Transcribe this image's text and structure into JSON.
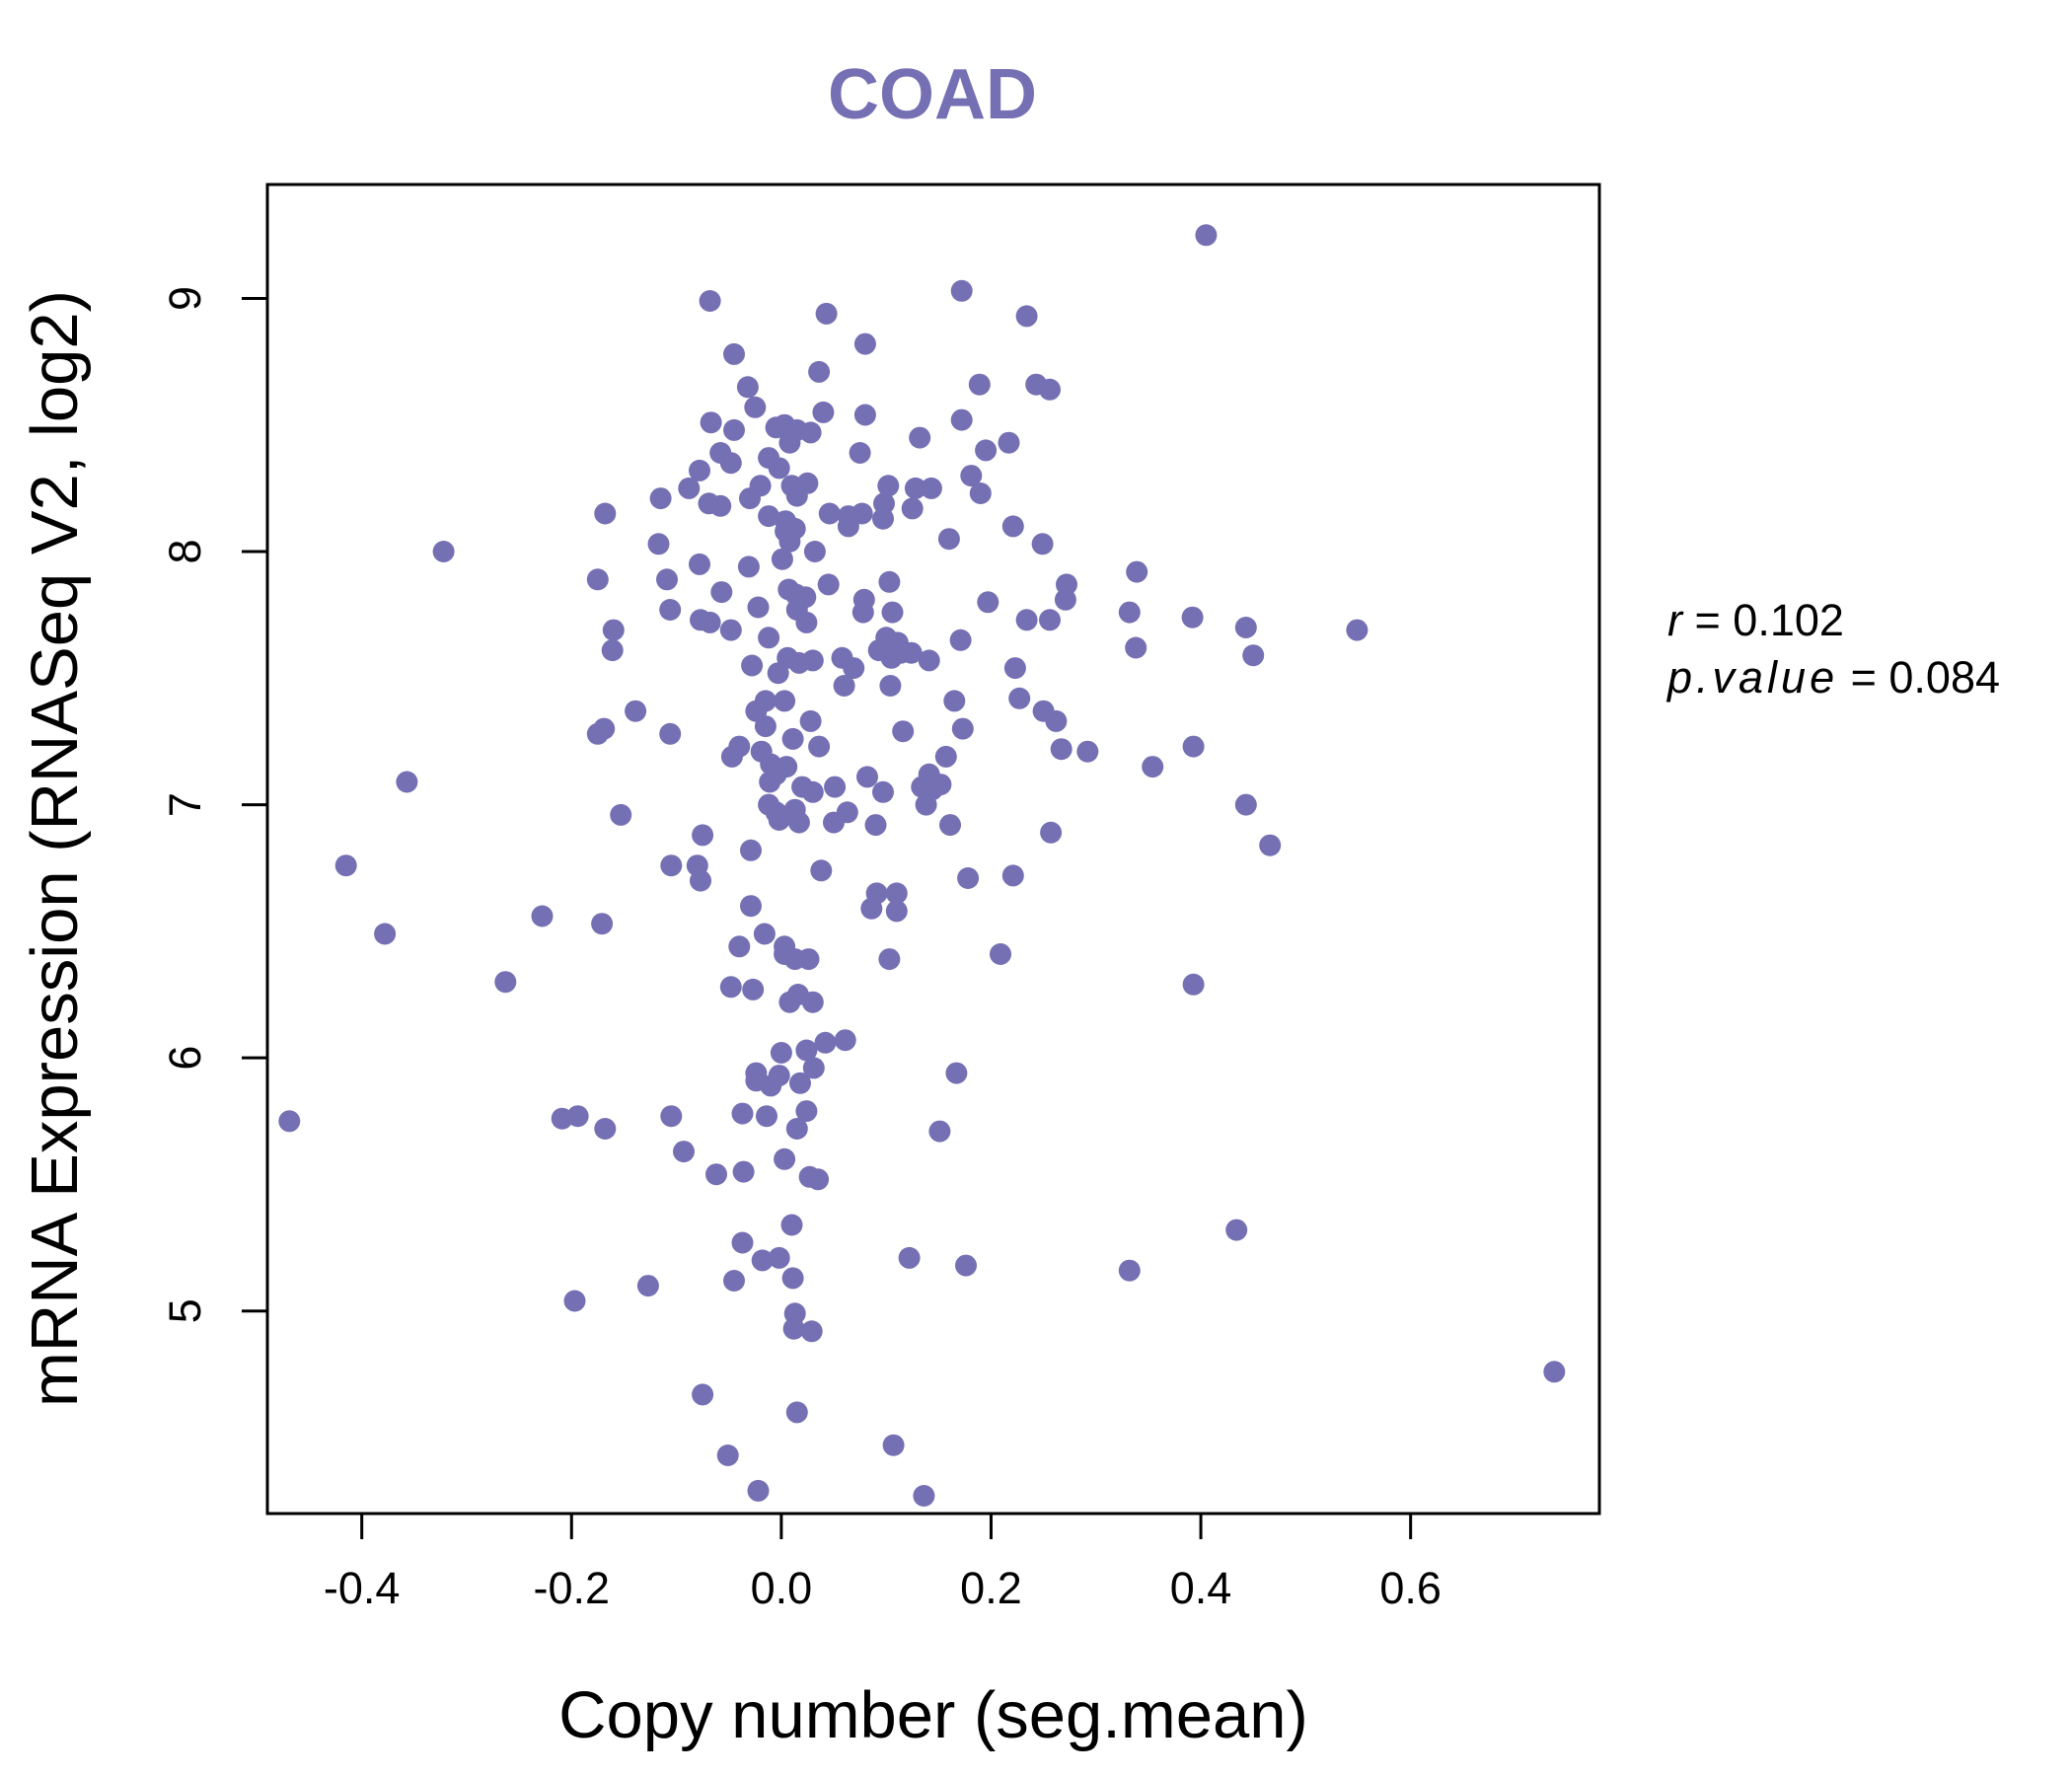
{
  "chart_data": {
    "type": "scatter",
    "title": "COAD",
    "xlabel": "Copy number (seg.mean)",
    "ylabel": "mRNA Expression (RNASeq V2, log2)",
    "xlim": [
      -0.49,
      0.78
    ],
    "ylim": [
      4.2,
      9.45
    ],
    "x_ticks": [
      -0.4,
      -0.2,
      0.0,
      0.2,
      0.4,
      0.6
    ],
    "x_tick_labels": [
      "-0.4",
      "-0.2",
      "0.0",
      "0.2",
      "0.4",
      "0.6"
    ],
    "y_ticks": [
      5,
      6,
      7,
      8,
      9
    ],
    "y_tick_labels": [
      "5",
      "6",
      "7",
      "8",
      "9"
    ],
    "grid": false,
    "point_color": "#7570b3",
    "annotation": {
      "r_label": "r",
      "r_value": "0.102",
      "p_label": "p.value",
      "p_value": "0.084"
    },
    "points": [
      [
        0.405,
        9.25
      ],
      [
        -0.068,
        8.99
      ],
      [
        0.172,
        9.03
      ],
      [
        0.043,
        8.94
      ],
      [
        0.234,
        8.93
      ],
      [
        -0.045,
        8.78
      ],
      [
        0.08,
        8.82
      ],
      [
        0.036,
        8.71
      ],
      [
        0.189,
        8.66
      ],
      [
        0.243,
        8.66
      ],
      [
        0.256,
        8.64
      ],
      [
        -0.032,
        8.65
      ],
      [
        -0.025,
        8.57
      ],
      [
        0.04,
        8.55
      ],
      [
        0.08,
        8.54
      ],
      [
        -0.067,
        8.51
      ],
      [
        -0.045,
        8.48
      ],
      [
        -0.005,
        8.49
      ],
      [
        0.003,
        8.5
      ],
      [
        0.015,
        8.48
      ],
      [
        0.028,
        8.47
      ],
      [
        0.172,
        8.52
      ],
      [
        0.132,
        8.45
      ],
      [
        0.217,
        8.43
      ],
      [
        0.195,
        8.4
      ],
      [
        0.008,
        8.43
      ],
      [
        -0.058,
        8.39
      ],
      [
        -0.048,
        8.35
      ],
      [
        -0.012,
        8.37
      ],
      [
        0.075,
        8.39
      ],
      [
        -0.078,
        8.32
      ],
      [
        -0.002,
        8.33
      ],
      [
        0.01,
        8.26
      ],
      [
        -0.02,
        8.26
      ],
      [
        -0.03,
        8.21
      ],
      [
        -0.088,
        8.25
      ],
      [
        -0.115,
        8.21
      ],
      [
        0.015,
        8.22
      ],
      [
        0.025,
        8.27
      ],
      [
        0.102,
        8.26
      ],
      [
        0.128,
        8.25
      ],
      [
        0.143,
        8.25
      ],
      [
        0.181,
        8.3
      ],
      [
        0.19,
        8.23
      ],
      [
        -0.069,
        8.19
      ],
      [
        -0.058,
        8.18
      ],
      [
        -0.168,
        8.15
      ],
      [
        -0.012,
        8.14
      ],
      [
        0.004,
        8.12
      ],
      [
        0.046,
        8.15
      ],
      [
        0.064,
        8.14
      ],
      [
        0.064,
        8.1
      ],
      [
        0.077,
        8.15
      ],
      [
        0.098,
        8.19
      ],
      [
        0.097,
        8.13
      ],
      [
        0.125,
        8.17
      ],
      [
        0.221,
        8.1
      ],
      [
        0.013,
        8.09
      ],
      [
        0.004,
        8.08
      ],
      [
        0.008,
        8.04
      ],
      [
        -0.117,
        8.03
      ],
      [
        0.16,
        8.05
      ],
      [
        0.249,
        8.03
      ],
      [
        -0.322,
        8.0
      ],
      [
        0.032,
        8.0
      ],
      [
        0.001,
        7.97
      ],
      [
        -0.078,
        7.95
      ],
      [
        -0.031,
        7.94
      ],
      [
        0.339,
        7.92
      ],
      [
        -0.175,
        7.89
      ],
      [
        -0.109,
        7.89
      ],
      [
        0.045,
        7.87
      ],
      [
        0.103,
        7.88
      ],
      [
        0.272,
        7.87
      ],
      [
        -0.057,
        7.84
      ],
      [
        0.007,
        7.85
      ],
      [
        0.014,
        7.83
      ],
      [
        0.023,
        7.82
      ],
      [
        0.079,
        7.81
      ],
      [
        0.271,
        7.81
      ],
      [
        0.197,
        7.8
      ],
      [
        -0.022,
        7.78
      ],
      [
        0.015,
        7.77
      ],
      [
        -0.106,
        7.77
      ],
      [
        0.078,
        7.76
      ],
      [
        0.106,
        7.76
      ],
      [
        0.332,
        7.76
      ],
      [
        -0.077,
        7.73
      ],
      [
        -0.068,
        7.72
      ],
      [
        0.024,
        7.72
      ],
      [
        0.234,
        7.73
      ],
      [
        0.256,
        7.73
      ],
      [
        0.392,
        7.74
      ],
      [
        -0.048,
        7.69
      ],
      [
        -0.16,
        7.69
      ],
      [
        0.443,
        7.7
      ],
      [
        0.549,
        7.69
      ],
      [
        -0.012,
        7.66
      ],
      [
        0.1,
        7.66
      ],
      [
        0.111,
        7.64
      ],
      [
        0.171,
        7.65
      ],
      [
        -0.161,
        7.61
      ],
      [
        0.093,
        7.61
      ],
      [
        0.338,
        7.62
      ],
      [
        0.105,
        7.58
      ],
      [
        0.058,
        7.58
      ],
      [
        0.006,
        7.58
      ],
      [
        0.114,
        7.6
      ],
      [
        0.124,
        7.6
      ],
      [
        0.03,
        7.57
      ],
      [
        0.017,
        7.56
      ],
      [
        0.141,
        7.57
      ],
      [
        0.45,
        7.59
      ],
      [
        -0.028,
        7.55
      ],
      [
        0.069,
        7.54
      ],
      [
        0.223,
        7.54
      ],
      [
        -0.003,
        7.52
      ],
      [
        0.104,
        7.47
      ],
      [
        0.06,
        7.47
      ],
      [
        0.165,
        7.41
      ],
      [
        0.227,
        7.42
      ],
      [
        -0.015,
        7.41
      ],
      [
        0.003,
        7.41
      ],
      [
        -0.024,
        7.37
      ],
      [
        -0.139,
        7.37
      ],
      [
        0.25,
        7.37
      ],
      [
        0.262,
        7.33
      ],
      [
        0.028,
        7.33
      ],
      [
        -0.015,
        7.31
      ],
      [
        0.173,
        7.3
      ],
      [
        -0.169,
        7.3
      ],
      [
        -0.106,
        7.28
      ],
      [
        -0.175,
        7.28
      ],
      [
        0.116,
        7.29
      ],
      [
        0.011,
        7.26
      ],
      [
        0.036,
        7.23
      ],
      [
        -0.04,
        7.23
      ],
      [
        -0.019,
        7.21
      ],
      [
        0.393,
        7.23
      ],
      [
        0.267,
        7.22
      ],
      [
        0.292,
        7.21
      ],
      [
        -0.047,
        7.19
      ],
      [
        0.157,
        7.19
      ],
      [
        -0.01,
        7.16
      ],
      [
        0.005,
        7.15
      ],
      [
        -0.005,
        7.12
      ],
      [
        0.141,
        7.12
      ],
      [
        0.354,
        7.15
      ],
      [
        0.082,
        7.11
      ],
      [
        -0.011,
        7.09
      ],
      [
        0.152,
        7.08
      ],
      [
        0.134,
        7.07
      ],
      [
        0.144,
        7.06
      ],
      [
        0.051,
        7.07
      ],
      [
        0.02,
        7.07
      ],
      [
        0.03,
        7.05
      ],
      [
        0.097,
        7.05
      ],
      [
        -0.357,
        7.09
      ],
      [
        -0.012,
        7.0
      ],
      [
        0.138,
        7.0
      ],
      [
        0.013,
        6.98
      ],
      [
        -0.005,
        6.97
      ],
      [
        0.063,
        6.97
      ],
      [
        0.443,
        7.0
      ],
      [
        -0.153,
        6.96
      ],
      [
        -0.002,
        6.94
      ],
      [
        0.017,
        6.93
      ],
      [
        0.05,
        6.93
      ],
      [
        0.09,
        6.92
      ],
      [
        0.161,
        6.92
      ],
      [
        0.257,
        6.89
      ],
      [
        -0.075,
        6.88
      ],
      [
        0.466,
        6.84
      ],
      [
        -0.029,
        6.82
      ],
      [
        -0.415,
        6.76
      ],
      [
        -0.105,
        6.76
      ],
      [
        -0.08,
        6.76
      ],
      [
        -0.077,
        6.7
      ],
      [
        0.038,
        6.74
      ],
      [
        0.178,
        6.71
      ],
      [
        0.221,
        6.72
      ],
      [
        0.091,
        6.65
      ],
      [
        0.11,
        6.65
      ],
      [
        0.086,
        6.59
      ],
      [
        0.11,
        6.58
      ],
      [
        -0.029,
        6.6
      ],
      [
        -0.228,
        6.56
      ],
      [
        -0.171,
        6.53
      ],
      [
        -0.016,
        6.49
      ],
      [
        -0.378,
        6.49
      ],
      [
        -0.04,
        6.44
      ],
      [
        0.003,
        6.44
      ],
      [
        0.003,
        6.41
      ],
      [
        0.013,
        6.39
      ],
      [
        0.026,
        6.39
      ],
      [
        0.209,
        6.41
      ],
      [
        0.103,
        6.39
      ],
      [
        -0.263,
        6.3
      ],
      [
        0.393,
        6.29
      ],
      [
        -0.048,
        6.28
      ],
      [
        -0.027,
        6.27
      ],
      [
        0.016,
        6.25
      ],
      [
        0.008,
        6.22
      ],
      [
        0.03,
        6.22
      ],
      [
        0.042,
        6.06
      ],
      [
        0.061,
        6.07
      ],
      [
        0.024,
        6.03
      ],
      [
        0.0,
        6.02
      ],
      [
        0.167,
        5.94
      ],
      [
        -0.024,
        5.94
      ],
      [
        -0.002,
        5.93
      ],
      [
        0.031,
        5.96
      ],
      [
        -0.024,
        5.91
      ],
      [
        -0.01,
        5.89
      ],
      [
        0.018,
        5.9
      ],
      [
        -0.037,
        5.78
      ],
      [
        -0.014,
        5.77
      ],
      [
        0.024,
        5.79
      ],
      [
        -0.105,
        5.77
      ],
      [
        -0.194,
        5.77
      ],
      [
        -0.209,
        5.76
      ],
      [
        -0.469,
        5.75
      ],
      [
        -0.168,
        5.72
      ],
      [
        0.015,
        5.72
      ],
      [
        0.151,
        5.71
      ],
      [
        -0.093,
        5.63
      ],
      [
        0.003,
        5.6
      ],
      [
        -0.062,
        5.54
      ],
      [
        -0.036,
        5.55
      ],
      [
        0.027,
        5.53
      ],
      [
        0.035,
        5.52
      ],
      [
        0.434,
        5.32
      ],
      [
        0.01,
        5.34
      ],
      [
        -0.037,
        5.27
      ],
      [
        0.122,
        5.21
      ],
      [
        -0.018,
        5.2
      ],
      [
        -0.002,
        5.21
      ],
      [
        0.176,
        5.18
      ],
      [
        0.332,
        5.16
      ],
      [
        0.011,
        5.13
      ],
      [
        -0.045,
        5.12
      ],
      [
        -0.127,
        5.1
      ],
      [
        -0.197,
        5.04
      ],
      [
        0.013,
        4.99
      ],
      [
        0.012,
        4.93
      ],
      [
        0.029,
        4.92
      ],
      [
        0.737,
        4.76
      ],
      [
        -0.075,
        4.67
      ],
      [
        0.015,
        4.6
      ],
      [
        0.107,
        4.47
      ],
      [
        -0.051,
        4.43
      ],
      [
        -0.022,
        4.29
      ],
      [
        0.136,
        4.27
      ]
    ]
  }
}
